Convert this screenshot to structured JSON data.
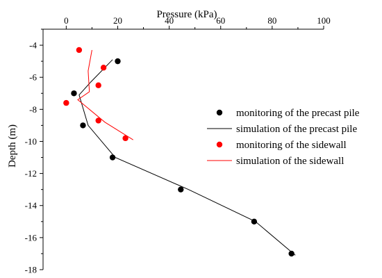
{
  "chart_data": {
    "type": "scatter",
    "title": "",
    "xlabel": "Pressure (kPa)",
    "ylabel": "Depth (m)",
    "xlim": [
      -9,
      100
    ],
    "ylim": [
      -18,
      -3
    ],
    "x_axis_position": "top",
    "x_ticks": [
      0,
      20,
      40,
      60,
      80,
      100
    ],
    "y_ticks": [
      -4,
      -6,
      -8,
      -10,
      -12,
      -14,
      -16,
      -18
    ],
    "grid": false,
    "legend_position": "right",
    "series": [
      {
        "name": "monitoring of the precast pile",
        "type": "scatter",
        "color": "#000000",
        "x": [
          20,
          3,
          6.5,
          18,
          44.5,
          73,
          87.5
        ],
        "y": [
          -5,
          -7,
          -9,
          -11,
          -13,
          -15,
          -17
        ]
      },
      {
        "name": "simulation of the precast pile",
        "type": "line",
        "color": "#000000",
        "x": [
          18,
          9.5,
          5,
          8.5,
          19,
          47.5,
          73.5,
          89
        ],
        "y": [
          -4.9,
          -6.3,
          -7.1,
          -9.0,
          -11.0,
          -13.0,
          -15.0,
          -17.1
        ]
      },
      {
        "name": "monitoring of the sidewall",
        "type": "scatter",
        "color": "#ff0000",
        "x": [
          5,
          14.5,
          12.5,
          0,
          12.5,
          23
        ],
        "y": [
          -4.3,
          -5.4,
          -6.5,
          -7.6,
          -8.7,
          -9.8
        ]
      },
      {
        "name": "simulation of the sidewall",
        "type": "line",
        "color": "#ff0000",
        "x": [
          10,
          8.5,
          9,
          4.5,
          15,
          26
        ],
        "y": [
          -4.3,
          -5.6,
          -6.9,
          -7.4,
          -8.8,
          -9.9
        ]
      }
    ]
  }
}
